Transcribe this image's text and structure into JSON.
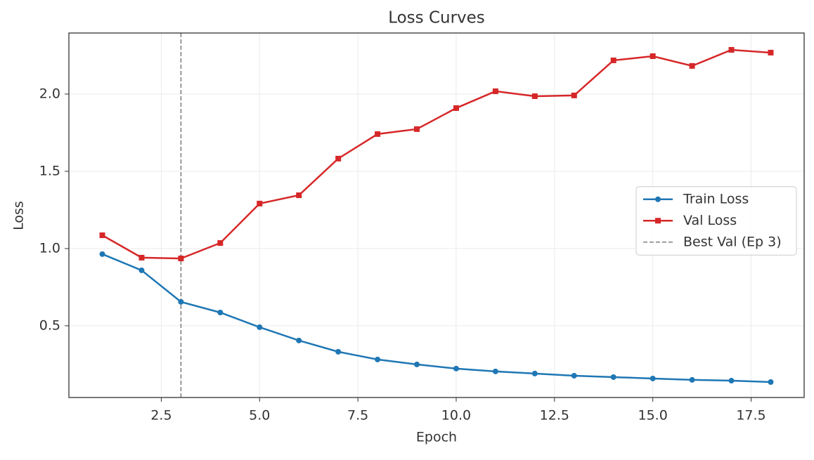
{
  "chart_data": {
    "type": "line",
    "title": "Loss Curves",
    "x_label": "Epoch",
    "y_label": "Loss",
    "x": [
      1,
      2,
      3,
      4,
      5,
      6,
      7,
      8,
      9,
      10,
      11,
      12,
      13,
      14,
      15,
      16,
      17,
      18
    ],
    "series": [
      {
        "name": "Train Loss",
        "color": "#1f77b4",
        "marker": "circle",
        "values": [
          0.964,
          0.859,
          0.655,
          0.586,
          0.491,
          0.405,
          0.332,
          0.282,
          0.25,
          0.223,
          0.205,
          0.191,
          0.177,
          0.168,
          0.159,
          0.15,
          0.145,
          0.136
        ]
      },
      {
        "name": "Val Loss",
        "color": "#d62728",
        "marker": "square",
        "values": [
          1.086,
          0.941,
          0.936,
          1.036,
          1.291,
          1.345,
          1.582,
          1.741,
          1.773,
          1.909,
          2.018,
          1.986,
          1.991,
          2.218,
          2.245,
          2.182,
          2.286,
          2.268
        ]
      }
    ],
    "vline": {
      "x": 3,
      "label": "Best Val (Ep 3)",
      "color": "#808080"
    },
    "xlim": [
      0.15,
      18.85
    ],
    "xticks": [
      2.5,
      {
        "value": 5,
        "label": "5.0"
      },
      7.5,
      {
        "value": 10,
        "label": "10.0"
      },
      12.5,
      {
        "value": 15,
        "label": "15.0"
      },
      17.5
    ],
    "ylim": [
      0.036,
      2.395
    ],
    "yticks": [
      0.5,
      {
        "value": 1,
        "label": "1.0"
      },
      1.5,
      {
        "value": 2,
        "label": "2.0"
      }
    ],
    "grid": true,
    "legend": "center right"
  }
}
